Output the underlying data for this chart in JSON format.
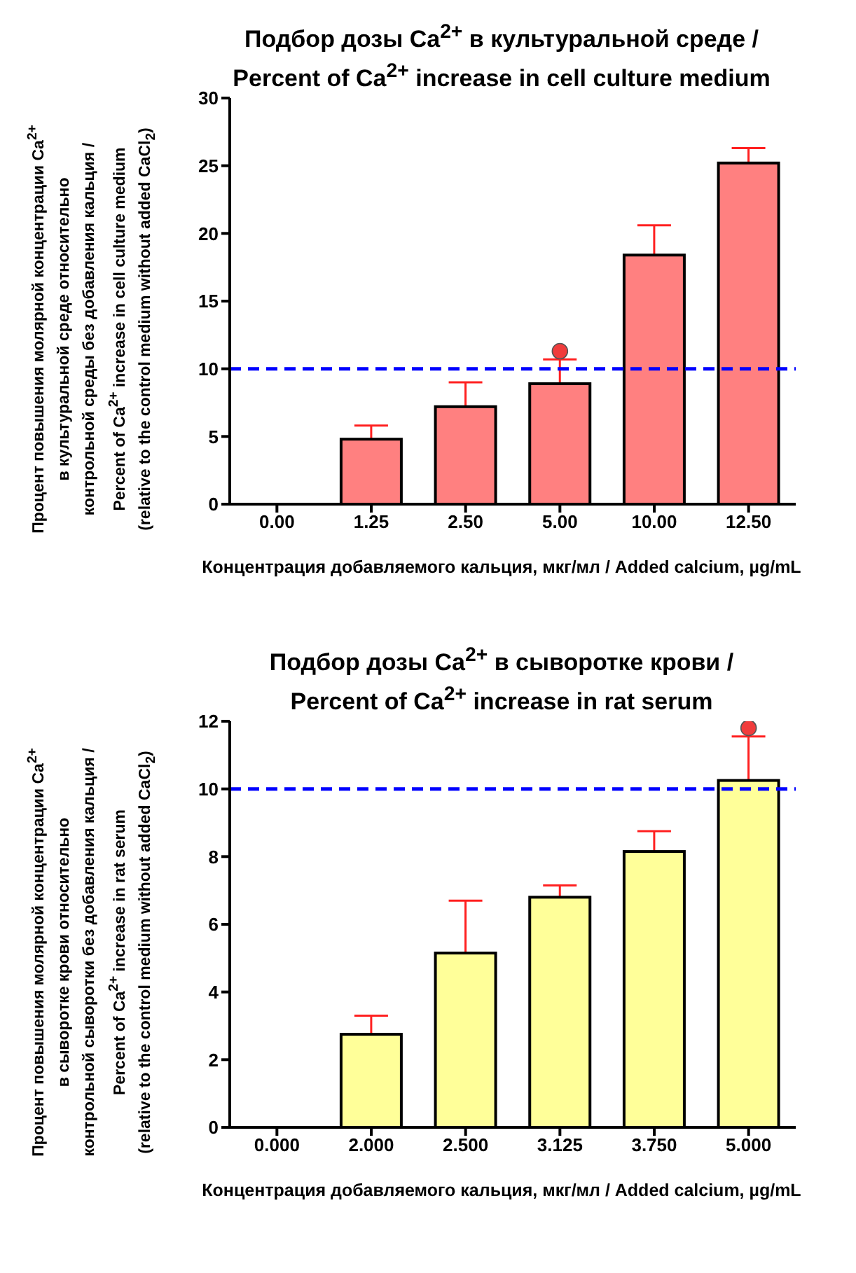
{
  "chart_data": [
    {
      "type": "bar",
      "title": "Подбор дозы Ca$^{2+}$ в культуральной среде /\nPercent of Ca$^{2+}$ increase in cell culture medium",
      "xlabel": "Концентрация добавляемого кальция, мкг/мл / Added calcium, µg/mL",
      "ylabel": "Процент повышения молярной концентрации Ca$^{2+}$\nв культуральной среде относительно\nконтрольной среды без добавления кальция /\nPercent of Ca$^{2+}$ increase in cell culture medium\n(relative to the control medium without added CaCl$_{2}$)",
      "categories": [
        "0.00",
        "1.25",
        "2.50",
        "5.00",
        "10.00",
        "12.50"
      ],
      "ylim": [
        0,
        30
      ],
      "yticks": [
        0,
        5,
        10,
        15,
        20,
        25,
        30
      ],
      "ref_lines": [
        {
          "axis": "y",
          "value": 10,
          "color": "#0000ff",
          "line_style": "dashed"
        }
      ],
      "series": [
        {
          "color": "#ff8080",
          "values": [
            0,
            4.8,
            7.2,
            8.9,
            18.4,
            25.2
          ],
          "errors": [
            null,
            [
              4.8,
              5.8
            ],
            [
              7.2,
              9.0
            ],
            [
              8.9,
              10.7
            ],
            [
              18.4,
              20.6
            ],
            [
              25.2,
              26.3
            ]
          ]
        },
        {
          "type": "scatter",
          "color": "#f03c3c",
          "marker": "circle",
          "x": [
            "5.00"
          ],
          "values": [
            11.3
          ]
        }
      ]
    },
    {
      "type": "bar",
      "title": "Подбор дозы Ca$^{2+}$ в сыворотке крови /\nPercent of Ca$^{2+}$ increase in rat serum",
      "xlabel": "Концентрация добавляемого кальция, мкг/мл / Added calcium, µg/mL",
      "ylabel": "Процент повышения молярной концентрации Ca$^{2+}$\nв сыворотке крови относительно\nконтрольной сыворотки без добавления кальция /\nPercent of Ca$^{2+}$ increase in rat serum\n(relative to the control medium without added CaCl$_{2}$)",
      "categories": [
        "0.000",
        "2.000",
        "2.500",
        "3.125",
        "3.750",
        "5.000"
      ],
      "ylim": [
        0,
        12
      ],
      "yticks": [
        0,
        2,
        4,
        6,
        8,
        10,
        12
      ],
      "ref_lines": [
        {
          "axis": "y",
          "value": 10,
          "color": "#0000ff",
          "line_style": "dashed"
        }
      ],
      "series": [
        {
          "color": "#ffff99",
          "values": [
            0,
            2.75,
            5.15,
            6.8,
            8.15,
            10.25
          ],
          "errors": [
            null,
            [
              2.75,
              3.3
            ],
            [
              5.15,
              6.7
            ],
            [
              6.8,
              7.15
            ],
            [
              8.15,
              8.75
            ],
            [
              10.25,
              11.55
            ]
          ]
        },
        {
          "type": "scatter",
          "color": "#f03c3c",
          "marker": "circle",
          "x": [
            "5.000"
          ],
          "values": [
            11.8
          ]
        }
      ]
    }
  ]
}
